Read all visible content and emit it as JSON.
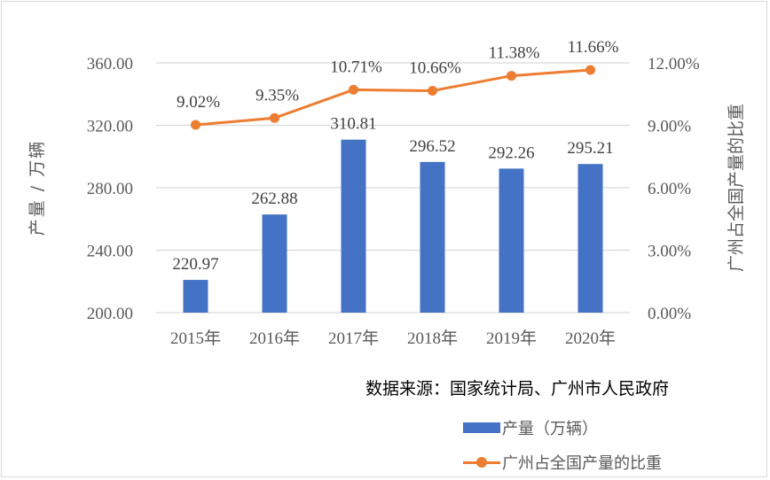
{
  "chart_data": {
    "type": "bar+line",
    "categories": [
      "2015年",
      "2016年",
      "2017年",
      "2018年",
      "2019年",
      "2020年"
    ],
    "series": [
      {
        "name": "产量（万辆）",
        "type": "bar",
        "axis": "left",
        "color": "#4472c4",
        "values": [
          220.97,
          262.88,
          310.81,
          296.52,
          292.26,
          295.21
        ],
        "labels": [
          "220.97",
          "262.88",
          "310.81",
          "296.52",
          "292.26",
          "295.21"
        ]
      },
      {
        "name": "广州占全国产量的比重",
        "type": "line",
        "axis": "right",
        "color": "#ed7d31",
        "values": [
          9.02,
          9.35,
          10.71,
          10.66,
          11.38,
          11.66
        ],
        "labels": [
          "9.02%",
          "9.35%",
          "10.71%",
          "10.66%",
          "11.38%",
          "11.66%"
        ]
      }
    ],
    "title": "",
    "ylabel": "产量 / 万辆",
    "y2label": "广州占全国产量的比重",
    "ylim": [
      200,
      360
    ],
    "y2lim": [
      0,
      12
    ],
    "yticks": [
      "200.00",
      "240.00",
      "280.00",
      "320.00",
      "360.00"
    ],
    "y2ticks": [
      "0.00%",
      "3.00%",
      "6.00%",
      "9.00%",
      "12.00%"
    ],
    "grid": true,
    "legend_position": "bottom-right",
    "annotation": "数据来源：国家统计局、广州市人民政府"
  },
  "legend": {
    "bar_label": "产量（万辆）",
    "line_label": "广州占全国产量的比重"
  },
  "source_note": "数据来源：国家统计局、广州市人民政府"
}
